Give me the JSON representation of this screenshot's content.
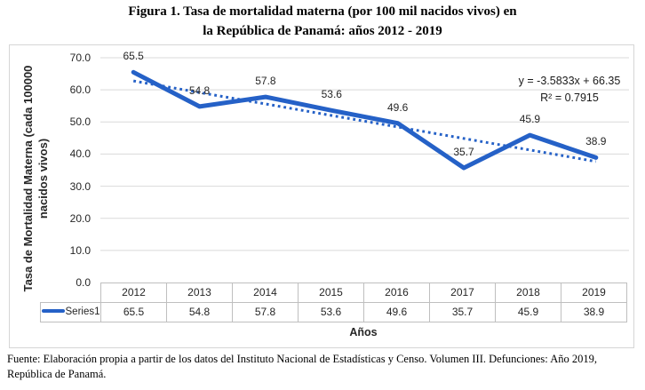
{
  "figure": {
    "title_line1": "Figura 1. Tasa de mortalidad materna (por 100 mil nacidos vivos) en",
    "title_line2": "la República de Panamá: años 2012 - 2019"
  },
  "chart_data": {
    "type": "line",
    "categories": [
      "2012",
      "2013",
      "2014",
      "2015",
      "2016",
      "2017",
      "2018",
      "2019"
    ],
    "series": [
      {
        "name": "Series1",
        "values": [
          65.5,
          54.8,
          57.8,
          53.6,
          49.6,
          35.7,
          45.9,
          38.9
        ]
      }
    ],
    "trendline": {
      "slope": -3.5833,
      "intercept": 66.35,
      "equation_label": "y = -3.5833x + 66.35",
      "r_squared_label": "R² = 0.7915"
    },
    "xlabel": "Años",
    "ylabel": "Tasa de Mortalidad Materna (cada 100000 nacidos vivos)",
    "ylabel_line1": "Tasa de Mortalidad Materna (cada 100000",
    "ylabel_line2": "nacidos vivos)",
    "ylim": [
      0,
      70
    ],
    "ytick_step": 10,
    "grid": true,
    "legend_position": "table-left"
  },
  "footer": {
    "source": "Fuente: Elaboración propia a partir de los datos del Instituto Nacional de Estadísticas y Censo. Volumen III. Defunciones: Año 2019, República de Panamá."
  },
  "colors": {
    "series": "#2561c7",
    "trendline": "#2561c7",
    "gridline": "#d9d9d9",
    "chart_border": "#d6d6d6",
    "table_border": "#bfbfbf",
    "text": "#262626"
  }
}
